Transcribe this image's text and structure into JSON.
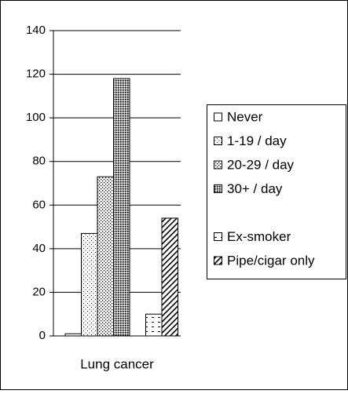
{
  "chart_data": {
    "type": "bar",
    "categories": [
      "Lung cancer"
    ],
    "series": [
      {
        "name": "Never",
        "values": [
          1
        ]
      },
      {
        "name": "1-19 / day",
        "values": [
          47
        ]
      },
      {
        "name": "20-29 / day",
        "values": [
          73
        ]
      },
      {
        "name": "30+ / day",
        "values": [
          118
        ]
      },
      {
        "name": "Ex-smoker",
        "values": [
          10
        ]
      },
      {
        "name": "Pipe/cigar only",
        "values": [
          54
        ]
      }
    ],
    "ylim": [
      0,
      140
    ],
    "yticks": [
      0,
      20,
      40,
      60,
      80,
      100,
      120,
      140
    ],
    "grid": true
  }
}
